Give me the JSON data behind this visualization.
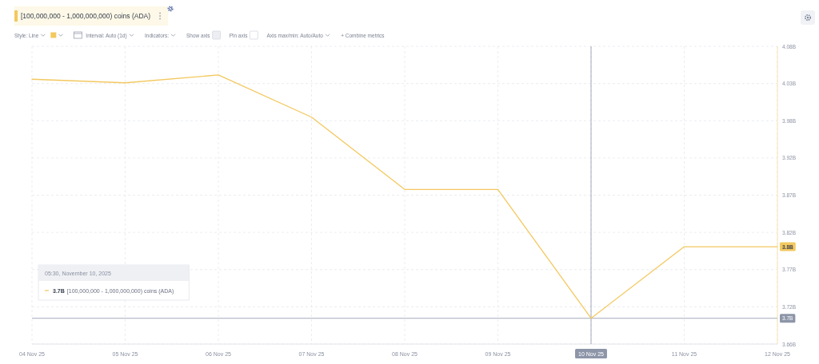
{
  "chart_data": {
    "type": "line",
    "x": [
      "2025-11-04",
      "2025-11-05",
      "2025-11-06",
      "2025-11-07",
      "2025-11-08",
      "2025-11-09",
      "2025-11-10",
      "2025-11-11",
      "2025-11-12"
    ],
    "series": [
      {
        "name": "[100,000,000 - 1,000,000,000) coins (ADA)",
        "color": "#f3c85f",
        "values": [
          4.034,
          4.029,
          4.04,
          3.981,
          3.88,
          3.88,
          3.7,
          3.8,
          3.8
        ],
        "value_labels": [
          null,
          null,
          null,
          null,
          null,
          null,
          null,
          null,
          "3.8B"
        ]
      }
    ],
    "xlim": [
      "2025-11-04",
      "2025-11-12"
    ],
    "xticks": [
      {
        "value": "2025-11-04",
        "label": "04 Nov 25"
      },
      {
        "value": "2025-11-05",
        "label": "05 Nov 25"
      },
      {
        "value": "2025-11-06",
        "label": "06 Nov 25"
      },
      {
        "value": "2025-11-07",
        "label": "07 Nov 25"
      },
      {
        "value": "2025-11-08",
        "label": "08 Nov 25"
      },
      {
        "value": "2025-11-09",
        "label": "09 Nov 25"
      },
      {
        "value": "2025-11-10",
        "label": null
      },
      {
        "value": "2025-11-11",
        "label": "11 Nov 25"
      },
      {
        "value": "2025-11-12",
        "label": "12 Nov 25"
      }
    ],
    "ylim": [
      3.664,
      4.08
    ],
    "yticks": [
      {
        "value": 3.664,
        "label": "3.66B"
      },
      {
        "value": 3.716,
        "label": "3.72B"
      },
      {
        "value": 3.768,
        "label": "3.77B"
      },
      {
        "value": 3.82,
        "label": "3.82B"
      },
      {
        "value": 3.872,
        "label": "3.87B"
      },
      {
        "value": 3.924,
        "label": "3.92B"
      },
      {
        "value": 3.976,
        "label": "3.98B"
      },
      {
        "value": 4.028,
        "label": "4.03B"
      },
      {
        "value": 4.08,
        "label": "4.08B"
      }
    ],
    "grid": true,
    "legend": "top left",
    "ref_lines": [
      {
        "axis": "y",
        "value": 3.7,
        "label": "3.7B",
        "color": "#8d95a8"
      },
      {
        "axis": "x",
        "value": "2025-11-10",
        "label": "10 Nov 25",
        "color": "#8d95a8"
      }
    ],
    "annotations": [
      "Style: Line",
      "Interval: Auto (1d)",
      "Indicators:",
      "Show axis",
      "Pin axis",
      "Axis max/min: Auto/Auto",
      "+ Combine metrics",
      "05:30, November 10, 2025",
      "3.7B"
    ]
  }
}
